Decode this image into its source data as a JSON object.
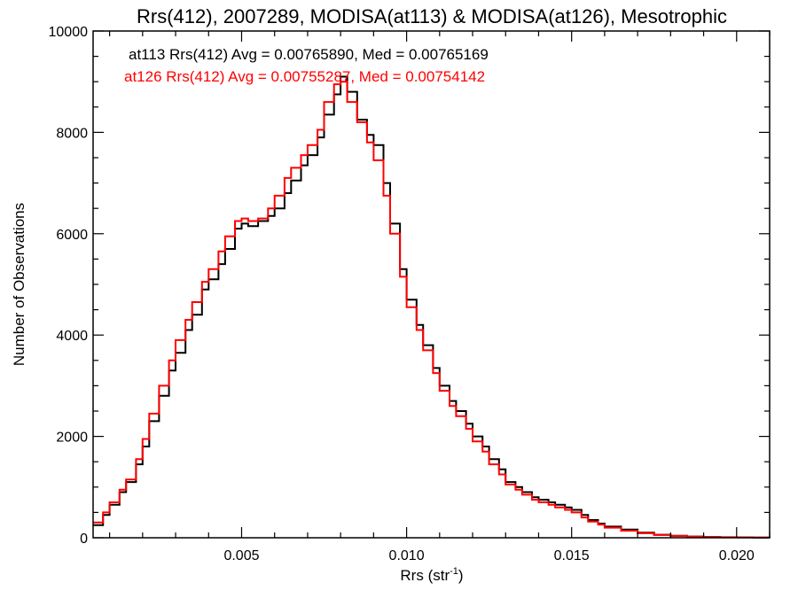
{
  "chart_data": {
    "type": "line",
    "title": "Rrs(412), 2007289, MODISA(at113) & MODISA(at126), Mesotrophic",
    "xlabel_main": "Rrs (str",
    "xlabel_sup": "-1",
    "xlabel_close": ")",
    "ylabel": "Number of Observations",
    "xlim": [
      0.0005,
      0.021
    ],
    "ylim": [
      0,
      10000
    ],
    "x_ticks": [
      0.005,
      0.01,
      0.015,
      0.02
    ],
    "x_tick_labels": [
      "0.005",
      "0.010",
      "0.015",
      "0.020"
    ],
    "y_ticks": [
      0,
      2000,
      4000,
      6000,
      8000,
      10000
    ],
    "y_tick_labels": [
      "0",
      "2000",
      "4000",
      "6000",
      "8000",
      "10000"
    ],
    "grid": false,
    "annotations": [
      {
        "text": "at113 Rrs(412) Avg = 0.00765890, Med = 0.00765169",
        "color": "#000000"
      },
      {
        "text": "at126 Rrs(412) Avg = 0.00755287, Med = 0.00754142",
        "color": "#ff0000"
      }
    ],
    "series": [
      {
        "color": "#000000",
        "points": [
          [
            0.0005,
            250
          ],
          [
            0.0008,
            450
          ],
          [
            0.001,
            650
          ],
          [
            0.0013,
            900
          ],
          [
            0.0015,
            1100
          ],
          [
            0.0018,
            1450
          ],
          [
            0.002,
            1800
          ],
          [
            0.0022,
            2300
          ],
          [
            0.0025,
            2800
          ],
          [
            0.0028,
            3300
          ],
          [
            0.003,
            3650
          ],
          [
            0.0033,
            4100
          ],
          [
            0.0035,
            4400
          ],
          [
            0.0038,
            4900
          ],
          [
            0.004,
            5100
          ],
          [
            0.0043,
            5400
          ],
          [
            0.0045,
            5700
          ],
          [
            0.0048,
            6100
          ],
          [
            0.005,
            6200
          ],
          [
            0.0052,
            6150
          ],
          [
            0.0055,
            6250
          ],
          [
            0.0058,
            6350
          ],
          [
            0.006,
            6500
          ],
          [
            0.0063,
            6800
          ],
          [
            0.0065,
            7050
          ],
          [
            0.0068,
            7350
          ],
          [
            0.007,
            7550
          ],
          [
            0.0073,
            7900
          ],
          [
            0.0075,
            8350
          ],
          [
            0.0078,
            8750
          ],
          [
            0.008,
            9100
          ],
          [
            0.0082,
            8800
          ],
          [
            0.0085,
            8250
          ],
          [
            0.0088,
            7950
          ],
          [
            0.009,
            7750
          ],
          [
            0.0093,
            7000
          ],
          [
            0.0095,
            6200
          ],
          [
            0.0098,
            5300
          ],
          [
            0.01,
            4700
          ],
          [
            0.0103,
            4200
          ],
          [
            0.0105,
            3800
          ],
          [
            0.0108,
            3350
          ],
          [
            0.011,
            3000
          ],
          [
            0.0113,
            2700
          ],
          [
            0.0115,
            2500
          ],
          [
            0.0118,
            2250
          ],
          [
            0.012,
            2000
          ],
          [
            0.0123,
            1800
          ],
          [
            0.0125,
            1550
          ],
          [
            0.0128,
            1350
          ],
          [
            0.013,
            1100
          ],
          [
            0.0133,
            1000
          ],
          [
            0.0135,
            900
          ],
          [
            0.0138,
            800
          ],
          [
            0.014,
            750
          ],
          [
            0.0143,
            700
          ],
          [
            0.0145,
            650
          ],
          [
            0.0148,
            600
          ],
          [
            0.015,
            550
          ],
          [
            0.0153,
            450
          ],
          [
            0.0155,
            350
          ],
          [
            0.0158,
            280
          ],
          [
            0.016,
            220
          ],
          [
            0.0165,
            160
          ],
          [
            0.017,
            100
          ],
          [
            0.0175,
            60
          ],
          [
            0.018,
            40
          ],
          [
            0.0185,
            25
          ],
          [
            0.019,
            15
          ],
          [
            0.0195,
            10
          ],
          [
            0.02,
            8
          ],
          [
            0.0205,
            5
          ],
          [
            0.021,
            3
          ]
        ]
      },
      {
        "color": "#ff0000",
        "points": [
          [
            0.0005,
            300
          ],
          [
            0.0008,
            500
          ],
          [
            0.001,
            700
          ],
          [
            0.0013,
            950
          ],
          [
            0.0015,
            1150
          ],
          [
            0.0018,
            1550
          ],
          [
            0.002,
            1950
          ],
          [
            0.0022,
            2450
          ],
          [
            0.0025,
            3000
          ],
          [
            0.0028,
            3500
          ],
          [
            0.003,
            3900
          ],
          [
            0.0033,
            4300
          ],
          [
            0.0035,
            4650
          ],
          [
            0.0038,
            5050
          ],
          [
            0.004,
            5300
          ],
          [
            0.0043,
            5650
          ],
          [
            0.0045,
            5950
          ],
          [
            0.0048,
            6250
          ],
          [
            0.005,
            6300
          ],
          [
            0.0052,
            6250
          ],
          [
            0.0055,
            6300
          ],
          [
            0.0058,
            6500
          ],
          [
            0.006,
            6750
          ],
          [
            0.0063,
            7100
          ],
          [
            0.0065,
            7300
          ],
          [
            0.0068,
            7550
          ],
          [
            0.007,
            7750
          ],
          [
            0.0073,
            8050
          ],
          [
            0.0075,
            8600
          ],
          [
            0.0078,
            8950
          ],
          [
            0.008,
            9000
          ],
          [
            0.0082,
            8600
          ],
          [
            0.0085,
            8200
          ],
          [
            0.0088,
            7800
          ],
          [
            0.009,
            7450
          ],
          [
            0.0093,
            6750
          ],
          [
            0.0095,
            6000
          ],
          [
            0.0098,
            5150
          ],
          [
            0.01,
            4550
          ],
          [
            0.0103,
            4100
          ],
          [
            0.0105,
            3700
          ],
          [
            0.0108,
            3250
          ],
          [
            0.011,
            2900
          ],
          [
            0.0113,
            2600
          ],
          [
            0.0115,
            2400
          ],
          [
            0.0118,
            2150
          ],
          [
            0.012,
            1900
          ],
          [
            0.0123,
            1700
          ],
          [
            0.0125,
            1450
          ],
          [
            0.0128,
            1250
          ],
          [
            0.013,
            1050
          ],
          [
            0.0133,
            950
          ],
          [
            0.0135,
            850
          ],
          [
            0.0138,
            750
          ],
          [
            0.014,
            700
          ],
          [
            0.0143,
            650
          ],
          [
            0.0145,
            600
          ],
          [
            0.0148,
            550
          ],
          [
            0.015,
            500
          ],
          [
            0.0153,
            400
          ],
          [
            0.0155,
            320
          ],
          [
            0.0158,
            260
          ],
          [
            0.016,
            200
          ],
          [
            0.0165,
            140
          ],
          [
            0.017,
            90
          ],
          [
            0.0175,
            55
          ],
          [
            0.018,
            35
          ],
          [
            0.0185,
            22
          ],
          [
            0.019,
            14
          ],
          [
            0.0195,
            9
          ],
          [
            0.02,
            7
          ],
          [
            0.0205,
            4
          ],
          [
            0.021,
            2
          ]
        ]
      }
    ]
  }
}
